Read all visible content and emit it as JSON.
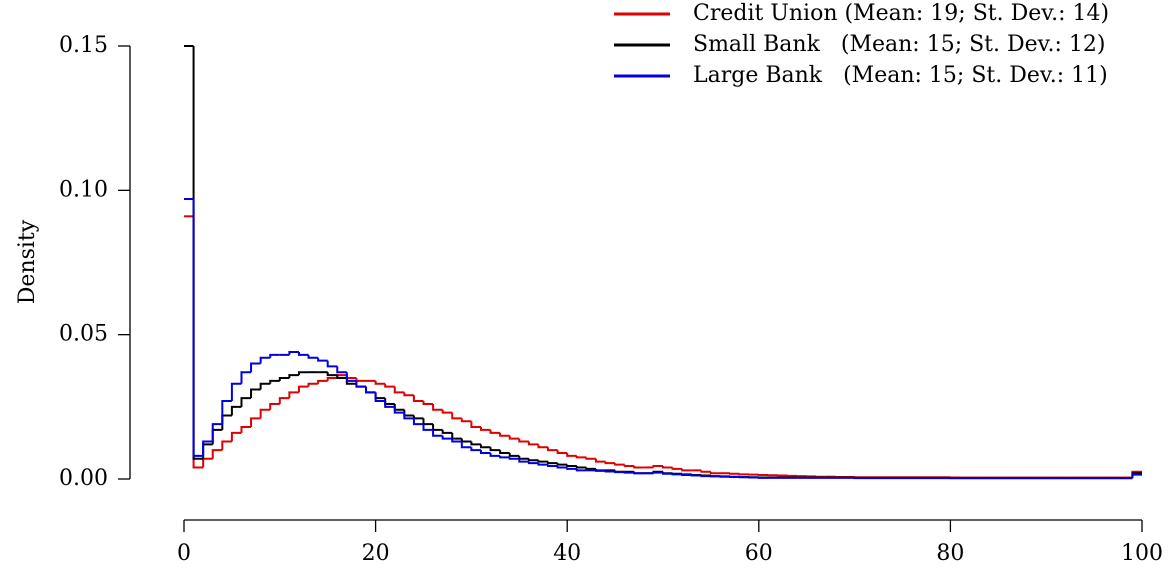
{
  "chart_data": {
    "type": "histogram",
    "y_label": "Density",
    "bins": [
      0,
      1,
      2,
      3,
      4,
      5,
      6,
      7,
      8,
      9,
      10,
      11,
      12,
      13,
      14,
      15,
      16,
      17,
      18,
      19,
      20,
      21,
      22,
      23,
      24,
      25,
      26,
      27,
      28,
      29,
      30,
      31,
      32,
      33,
      34,
      35,
      36,
      37,
      38,
      39,
      40,
      41,
      42,
      43,
      44,
      45,
      46,
      47,
      48,
      49,
      50,
      51,
      52,
      53,
      54,
      55,
      56,
      57,
      58,
      59,
      60,
      61,
      62,
      63,
      64,
      65,
      66,
      67,
      68,
      69,
      70,
      71,
      72,
      73,
      74,
      75,
      76,
      77,
      78,
      79,
      80,
      81,
      82,
      83,
      84,
      85,
      86,
      87,
      88,
      89,
      90,
      91,
      92,
      93,
      94,
      95,
      96,
      97,
      98,
      99,
      100
    ],
    "series": [
      {
        "name": "Credit Union (Mean: 19; St. Dev.: 14)",
        "color": "#e00000",
        "values": [
          0.091,
          0.004,
          0.007,
          0.01,
          0.013,
          0.016,
          0.018,
          0.021,
          0.024,
          0.026,
          0.028,
          0.03,
          0.032,
          0.033,
          0.034,
          0.035,
          0.036,
          0.035,
          0.034,
          0.034,
          0.033,
          0.032,
          0.03,
          0.029,
          0.027,
          0.026,
          0.024,
          0.023,
          0.021,
          0.02,
          0.018,
          0.017,
          0.016,
          0.015,
          0.014,
          0.013,
          0.012,
          0.011,
          0.01,
          0.009,
          0.008,
          0.0075,
          0.007,
          0.006,
          0.0055,
          0.005,
          0.0045,
          0.004,
          0.004,
          0.0045,
          0.004,
          0.0035,
          0.003,
          0.003,
          0.0025,
          0.002,
          0.002,
          0.0018,
          0.0016,
          0.0015,
          0.0014,
          0.0013,
          0.0012,
          0.0011,
          0.001,
          0.0009,
          0.0008,
          0.0008,
          0.0007,
          0.0007,
          0.0006,
          0.0006,
          0.0006,
          0.0006,
          0.0006,
          0.0006,
          0.0006,
          0.0006,
          0.0006,
          0.0006,
          0.0005,
          0.0005,
          0.0005,
          0.0005,
          0.0005,
          0.0005,
          0.0005,
          0.0005,
          0.0005,
          0.0005,
          0.0005,
          0.0005,
          0.0005,
          0.0005,
          0.0005,
          0.0005,
          0.0005,
          0.0005,
          0.0005,
          0.0025
        ]
      },
      {
        "name": "Small Bank   (Mean: 15; St. Dev.: 12)",
        "color": "#000000",
        "values": [
          0.15,
          0.007,
          0.012,
          0.017,
          0.022,
          0.025,
          0.028,
          0.031,
          0.033,
          0.034,
          0.035,
          0.036,
          0.037,
          0.037,
          0.037,
          0.036,
          0.035,
          0.033,
          0.032,
          0.03,
          0.028,
          0.026,
          0.024,
          0.022,
          0.021,
          0.019,
          0.017,
          0.016,
          0.014,
          0.013,
          0.012,
          0.011,
          0.01,
          0.009,
          0.008,
          0.007,
          0.0065,
          0.006,
          0.0055,
          0.005,
          0.0045,
          0.004,
          0.0035,
          0.003,
          0.003,
          0.0025,
          0.0025,
          0.002,
          0.002,
          0.0025,
          0.002,
          0.0018,
          0.0016,
          0.0014,
          0.0012,
          0.001,
          0.0009,
          0.0008,
          0.0007,
          0.0006,
          0.0005,
          0.0005,
          0.0005,
          0.0005,
          0.0005,
          0.0005,
          0.0005,
          0.0005,
          0.0005,
          0.0005,
          0.0004,
          0.0004,
          0.0004,
          0.0004,
          0.0004,
          0.0004,
          0.0004,
          0.0004,
          0.0004,
          0.0004,
          0.0003,
          0.0003,
          0.0003,
          0.0003,
          0.0003,
          0.0003,
          0.0003,
          0.0003,
          0.0003,
          0.0003,
          0.0003,
          0.0003,
          0.0003,
          0.0003,
          0.0003,
          0.0003,
          0.0003,
          0.0003,
          0.0003,
          0.002
        ]
      },
      {
        "name": "Large Bank   (Mean: 15; St. Dev.: 11)",
        "color": "#0000e0",
        "values": [
          0.097,
          0.008,
          0.013,
          0.019,
          0.027,
          0.033,
          0.037,
          0.04,
          0.042,
          0.043,
          0.043,
          0.044,
          0.043,
          0.042,
          0.041,
          0.039,
          0.037,
          0.034,
          0.032,
          0.03,
          0.027,
          0.025,
          0.023,
          0.021,
          0.019,
          0.017,
          0.015,
          0.014,
          0.013,
          0.011,
          0.01,
          0.009,
          0.008,
          0.0075,
          0.007,
          0.006,
          0.0055,
          0.005,
          0.0045,
          0.004,
          0.0035,
          0.003,
          0.003,
          0.0028,
          0.0026,
          0.0024,
          0.0022,
          0.002,
          0.002,
          0.0022,
          0.0018,
          0.0016,
          0.0014,
          0.0012,
          0.001,
          0.0009,
          0.0008,
          0.0007,
          0.0006,
          0.0005,
          0.0004,
          0.0004,
          0.0004,
          0.0004,
          0.0004,
          0.0004,
          0.0004,
          0.0004,
          0.0004,
          0.0004,
          0.0003,
          0.0003,
          0.0003,
          0.0003,
          0.0003,
          0.0003,
          0.0003,
          0.0003,
          0.0003,
          0.0003,
          0.0003,
          0.0003,
          0.0003,
          0.0003,
          0.0003,
          0.0003,
          0.0003,
          0.0003,
          0.0003,
          0.0003,
          0.0003,
          0.0003,
          0.0003,
          0.0003,
          0.0003,
          0.0003,
          0.0003,
          0.0003,
          0.0003,
          0.0015
        ]
      }
    ],
    "xlim": [
      0,
      100
    ],
    "xticks": [
      0,
      20,
      40,
      60,
      80,
      100
    ],
    "ylim": [
      0,
      0.15
    ],
    "yticks": [
      {
        "value": 0,
        "label": "0.00"
      },
      {
        "value": 0.05,
        "label": "0.05"
      },
      {
        "value": 0.1,
        "label": "0.10"
      },
      {
        "value": 0.15,
        "label": "0.15"
      }
    ],
    "legend": "top-right"
  }
}
